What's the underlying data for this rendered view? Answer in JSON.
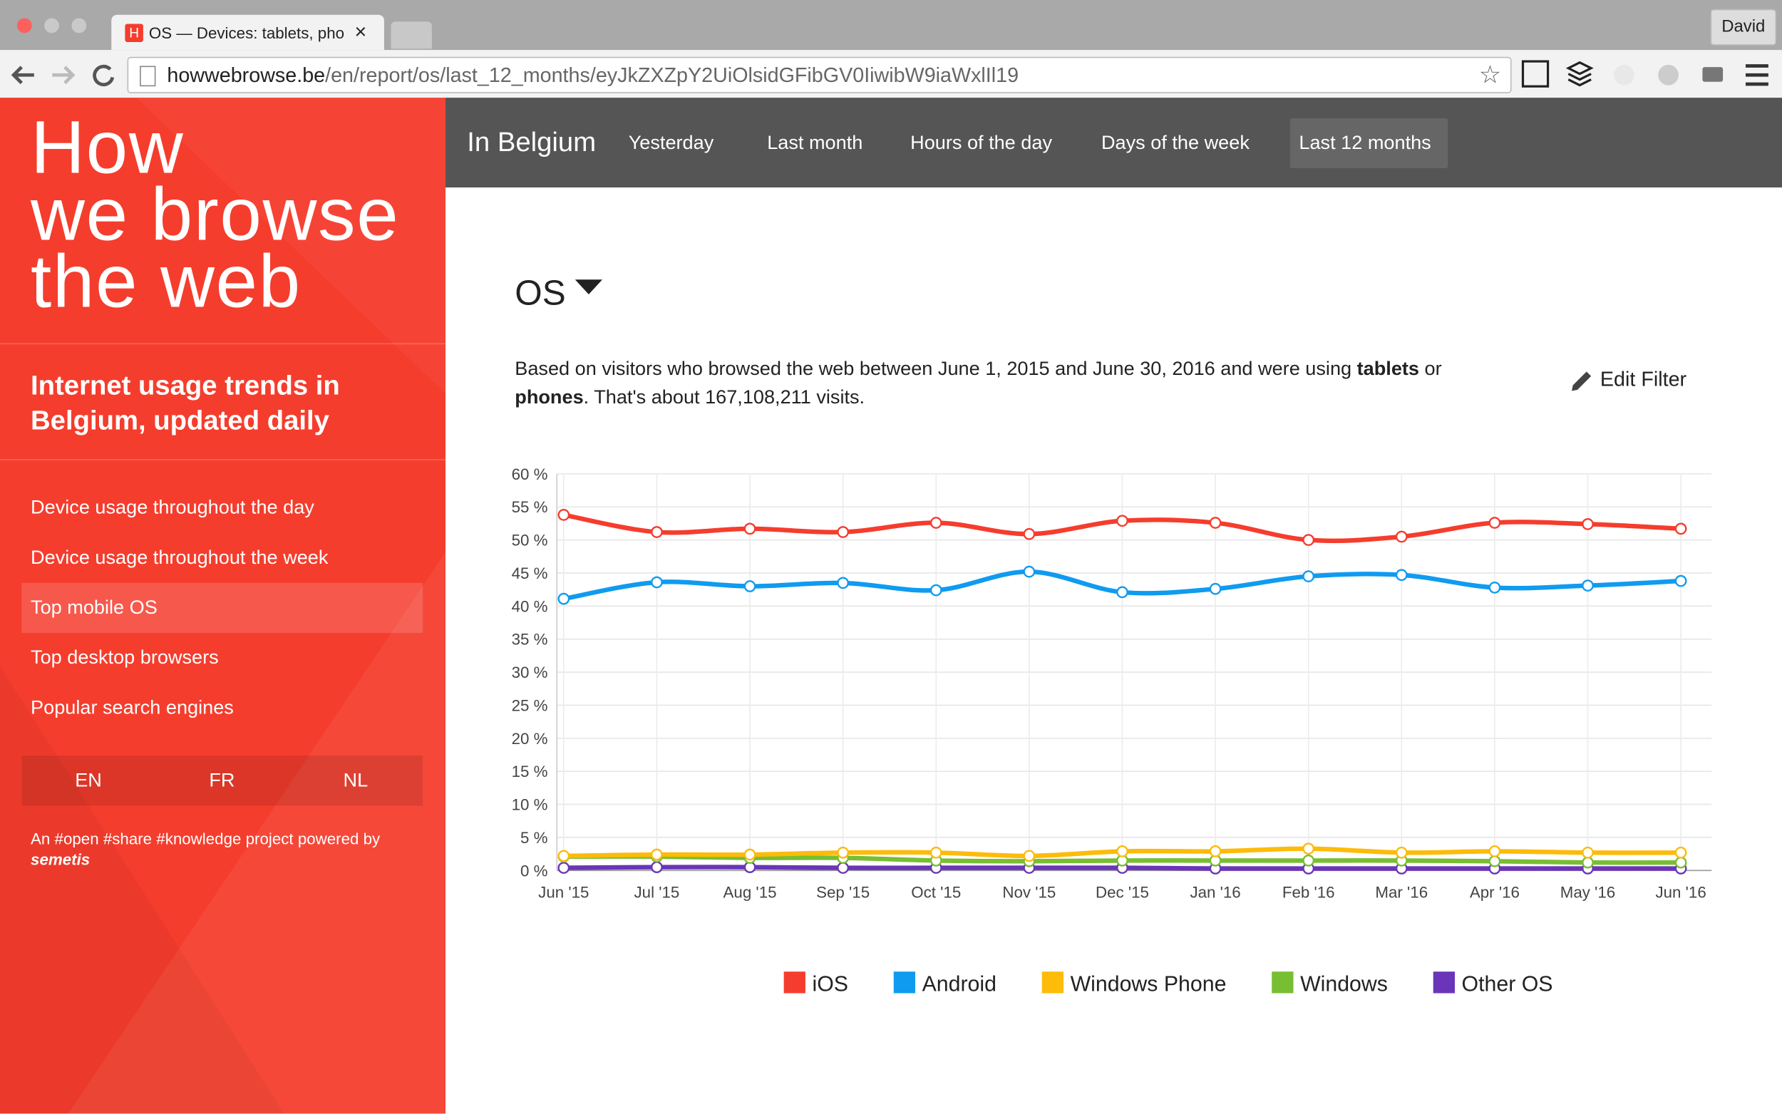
{
  "browser": {
    "tab_title": "OS — Devices: tablets, pho",
    "tab_icon": "H",
    "user": "David",
    "url_host": "howwebrowse.be",
    "url_path": "/en/report/os/last_12_months/eyJkZXZpY2UiOlsidGFibGV0IiwibW9iaWxlIl19"
  },
  "sidebar": {
    "title_lines": [
      "How",
      "we browse",
      "the web"
    ],
    "tagline": "Internet usage trends in Belgium, updated daily",
    "menu": [
      "Device usage throughout the day",
      "Device usage throughout the week",
      "Top mobile OS",
      "Top desktop browsers",
      "Popular search engines"
    ],
    "languages": [
      "EN",
      "FR",
      "NL"
    ],
    "footer": "An #open #share #knowledge project powered by",
    "logo": "semetis"
  },
  "nav": {
    "region": "In Belgium",
    "items": [
      "Yesterday",
      "Last month",
      "Hours of the day",
      "Days of the week",
      "Last 12 months"
    ]
  },
  "report": {
    "heading": "OS",
    "description": [
      "Based on visitors who browsed the web between June 1, 2015 and June 30, 2016 and were using ",
      "tablets",
      " or ",
      "phones",
      ". That's about 167,108,211 visits."
    ],
    "edit_filter": "Edit Filter"
  },
  "chart_data": {
    "type": "line",
    "categories": [
      "Jun '15",
      "Jul '15",
      "Aug '15",
      "Sep '15",
      "Oct '15",
      "Nov '15",
      "Dec '15",
      "Jan '16",
      "Feb '16",
      "Mar '16",
      "Apr '16",
      "May '16",
      "Jun '16"
    ],
    "series": [
      {
        "name": "iOS",
        "color": "#f53d2d",
        "values": [
          53.8,
          51.2,
          51.7,
          51.2,
          52.6,
          50.9,
          52.9,
          52.6,
          50.0,
          50.5,
          52.6,
          52.4,
          51.7
        ]
      },
      {
        "name": "Android",
        "color": "#0f9bf0",
        "values": [
          41.1,
          43.6,
          43.0,
          43.5,
          42.4,
          45.2,
          42.1,
          42.6,
          44.5,
          44.7,
          42.8,
          43.1,
          43.8
        ]
      },
      {
        "name": "Windows Phone",
        "color": "#fdbb0a",
        "values": [
          2.2,
          2.4,
          2.4,
          2.7,
          2.7,
          2.2,
          2.9,
          2.9,
          3.3,
          2.7,
          2.9,
          2.7,
          2.7
        ]
      },
      {
        "name": "Windows",
        "color": "#78be32",
        "values": [
          2.1,
          2.1,
          1.9,
          1.9,
          1.5,
          1.4,
          1.5,
          1.5,
          1.5,
          1.5,
          1.4,
          1.2,
          1.2
        ]
      },
      {
        "name": "Other OS",
        "color": "#6a35b8",
        "values": [
          0.4,
          0.5,
          0.5,
          0.4,
          0.4,
          0.4,
          0.4,
          0.3,
          0.3,
          0.3,
          0.3,
          0.3,
          0.3
        ]
      }
    ],
    "ylim": [
      0,
      60
    ],
    "yticks": [
      {
        "value": 0,
        "label": "0 %"
      },
      {
        "value": 5,
        "label": "5 %"
      },
      {
        "value": 10,
        "label": "10 %"
      },
      {
        "value": 15,
        "label": "15 %"
      },
      {
        "value": 20,
        "label": "20 %"
      },
      {
        "value": 25,
        "label": "25 %"
      },
      {
        "value": 30,
        "label": "30 %"
      },
      {
        "value": 35,
        "label": "35 %"
      },
      {
        "value": 40,
        "label": "40 %"
      },
      {
        "value": 45,
        "label": "45 %"
      },
      {
        "value": 50,
        "label": "50 %"
      },
      {
        "value": 55,
        "label": "55 %"
      },
      {
        "value": 60,
        "label": "60 %"
      }
    ],
    "grid": true,
    "legend": "bottom"
  }
}
